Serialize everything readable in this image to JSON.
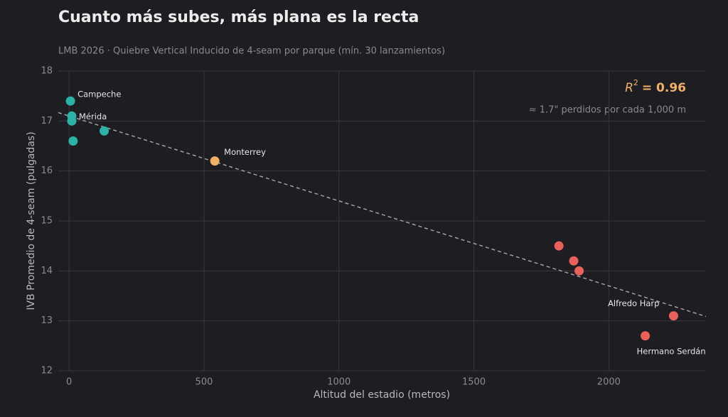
{
  "chart_data": {
    "type": "scatter",
    "title": "Cuanto más subes, más plana es la recta",
    "subtitle": "LMB 2026 · Quiebre Vertical Inducido de 4-seam por parque (mín. 30 lanzamientos)",
    "x_label": "Altitud del estadio (metros)",
    "y_label": "IVB Promedio de 4-seam (pulgadas)",
    "x": [
      5,
      10,
      10,
      15,
      130,
      540,
      1815,
      1870,
      1890,
      2240,
      2135
    ],
    "values": [
      17.4,
      17.1,
      17.0,
      16.6,
      16.8,
      16.2,
      14.5,
      14.2,
      14.0,
      13.1,
      12.7
    ],
    "colors": [
      "#2ab3a6",
      "#2ab3a6",
      "#2ab3a6",
      "#2ab3a6",
      "#2ab3a6",
      "#f2b066",
      "#ea615b",
      "#ea615b",
      "#ea615b",
      "#ea615b",
      "#ea615b"
    ],
    "point_labels": [
      "Campeche",
      "Mérida",
      null,
      null,
      null,
      "Monterrey",
      null,
      null,
      null,
      "Alfredo Harp",
      "Hermano Serdán"
    ],
    "trend": {
      "intercept": 17.1,
      "slope": -0.0017,
      "color": "#a0a0a6"
    },
    "r2_symbol": "R",
    "r2_exponent": "2",
    "r2_text": "= 0.96",
    "trend_note": "≈ 1.7\" perdidos por cada 1,000 m",
    "xlim": [
      -40,
      2360
    ],
    "xticks": [
      0,
      500,
      1000,
      1500,
      2000
    ],
    "ylim": [
      12,
      18
    ],
    "yticks": [
      12,
      13,
      14,
      15,
      16,
      17,
      18
    ],
    "grid": true
  }
}
